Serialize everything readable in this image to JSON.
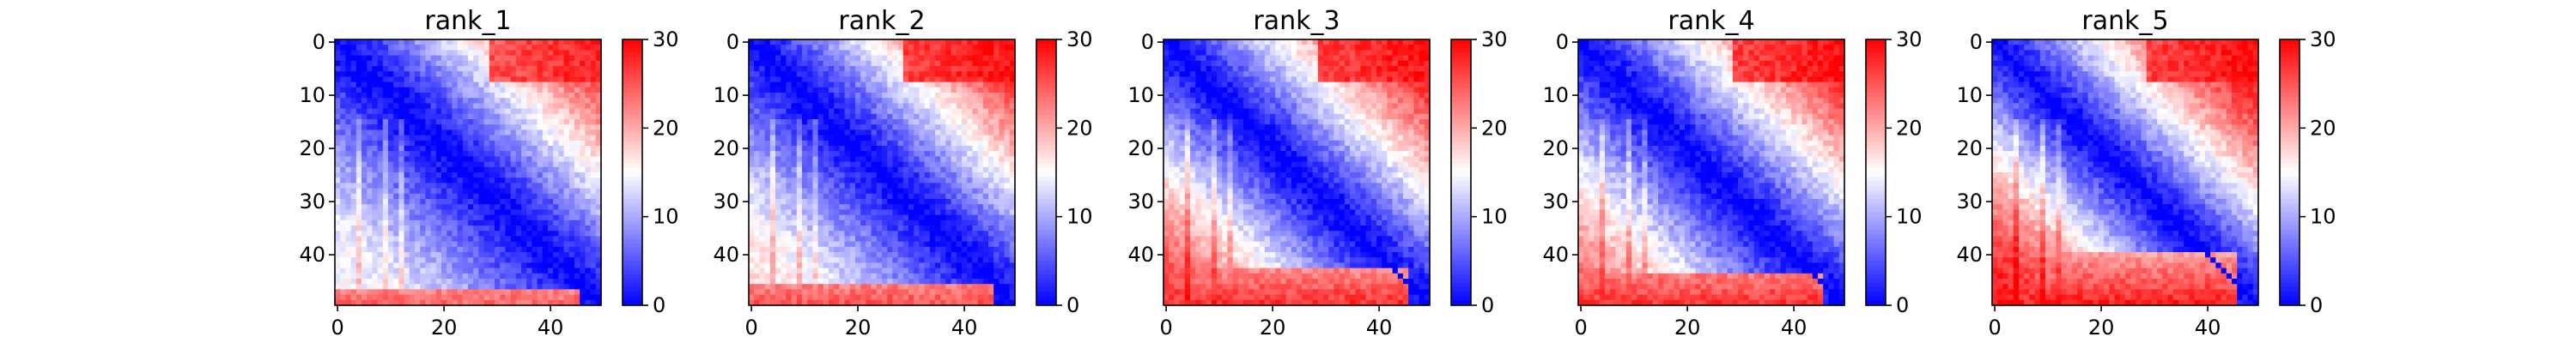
{
  "chart_data": [
    {
      "type": "heatmap",
      "title": "rank_1",
      "matrix_size": [
        50,
        50
      ],
      "x_ticks": [
        0,
        20,
        40
      ],
      "y_ticks": [
        0,
        10,
        20,
        30,
        40
      ],
      "colorbar": {
        "colormap": "bwr",
        "range": [
          0,
          30
        ],
        "ticks": [
          0,
          10,
          20,
          30
        ]
      },
      "pattern": {
        "diagonal_value": 0,
        "near_diagonal_growth_per_index": 0.35,
        "top_right_corner_value": 29,
        "bottom_left_corner_value": 15,
        "bottom_rows_value": 24,
        "bottom_rows_from_index": 47,
        "vertical_streaks_at_columns": [
          4,
          9,
          12
        ]
      }
    },
    {
      "type": "heatmap",
      "title": "rank_2",
      "matrix_size": [
        50,
        50
      ],
      "x_ticks": [
        0,
        20,
        40
      ],
      "y_ticks": [
        0,
        10,
        20,
        30,
        40
      ],
      "colorbar": {
        "colormap": "bwr",
        "range": [
          0,
          30
        ],
        "ticks": [
          0,
          10,
          20,
          30
        ]
      },
      "pattern": {
        "diagonal_value": 0,
        "near_diagonal_growth_per_index": 0.38,
        "top_right_corner_value": 30,
        "bottom_left_corner_value": 17,
        "bottom_rows_value": 25,
        "bottom_rows_from_index": 46,
        "vertical_streaks_at_columns": [
          4,
          9,
          12
        ]
      }
    },
    {
      "type": "heatmap",
      "title": "rank_3",
      "matrix_size": [
        50,
        50
      ],
      "x_ticks": [
        0,
        20,
        40
      ],
      "y_ticks": [
        0,
        10,
        20,
        30,
        40
      ],
      "colorbar": {
        "colormap": "bwr",
        "range": [
          0,
          30
        ],
        "ticks": [
          0,
          10,
          20,
          30
        ]
      },
      "pattern": {
        "diagonal_value": 0,
        "near_diagonal_growth_per_index": 0.45,
        "top_right_corner_value": 30,
        "bottom_left_corner_value": 27,
        "bottom_rows_value": 27,
        "bottom_rows_from_index": 43,
        "vertical_streaks_at_columns": [
          4,
          9,
          12
        ]
      }
    },
    {
      "type": "heatmap",
      "title": "rank_4",
      "matrix_size": [
        50,
        50
      ],
      "x_ticks": [
        0,
        20,
        40
      ],
      "y_ticks": [
        0,
        10,
        20,
        30,
        40
      ],
      "colorbar": {
        "colormap": "bwr",
        "range": [
          0,
          30
        ],
        "ticks": [
          0,
          10,
          20,
          30
        ]
      },
      "pattern": {
        "diagonal_value": 0,
        "near_diagonal_growth_per_index": 0.42,
        "top_right_corner_value": 30,
        "bottom_left_corner_value": 24,
        "bottom_rows_value": 27,
        "bottom_rows_from_index": 44,
        "vertical_streaks_at_columns": [
          4,
          9,
          12
        ]
      }
    },
    {
      "type": "heatmap",
      "title": "rank_5",
      "matrix_size": [
        50,
        50
      ],
      "x_ticks": [
        0,
        20,
        40
      ],
      "y_ticks": [
        0,
        10,
        20,
        30,
        40
      ],
      "colorbar": {
        "colormap": "bwr",
        "range": [
          0,
          30
        ],
        "ticks": [
          0,
          10,
          20,
          30
        ]
      },
      "pattern": {
        "diagonal_value": 0,
        "near_diagonal_growth_per_index": 0.55,
        "top_right_corner_value": 30,
        "bottom_left_corner_value": 29,
        "bottom_rows_value": 28,
        "bottom_rows_from_index": 40,
        "vertical_streaks_at_columns": [
          4,
          9,
          12
        ]
      }
    }
  ]
}
